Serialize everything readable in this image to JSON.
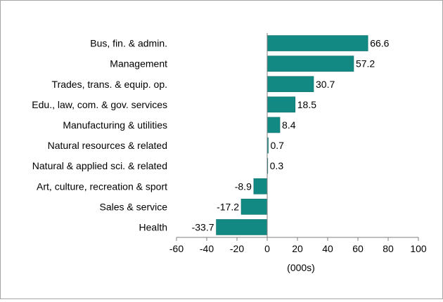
{
  "chart_data": {
    "type": "bar",
    "orientation": "horizontal",
    "title": "",
    "xlabel": "(000s)",
    "ylabel": "",
    "categories": [
      "Bus, fin. & admin.",
      "Management",
      "Trades, trans. & equip. op.",
      "Edu., law, com. & gov. services",
      "Manufacturing & utilities",
      "Natural resources & related",
      "Natural & applied sci. & related",
      "Art, culture, recreation & sport",
      "Sales & service",
      "Health"
    ],
    "values": [
      66.6,
      57.2,
      30.7,
      18.5,
      8.4,
      0.7,
      0.3,
      -8.9,
      -17.2,
      -33.7
    ],
    "value_labels": [
      "66.6",
      "57.2",
      "30.7",
      "18.5",
      "8.4",
      "0.7",
      "0.3",
      "-8.9",
      "-17.2",
      "-33.7"
    ],
    "xlim": [
      -60,
      100
    ],
    "xticks": [
      -60,
      -40,
      -20,
      0,
      20,
      40,
      60,
      80,
      100
    ],
    "xtick_labels": [
      "-60",
      "-40",
      "-20",
      "0",
      "20",
      "40",
      "60",
      "80",
      "100"
    ],
    "grid": false,
    "legend": "none",
    "colors": {
      "bar": "#138983",
      "bar_edge": "#0d6e69",
      "axis": "#7f7f7f",
      "frame": "#a6a6a6"
    }
  }
}
